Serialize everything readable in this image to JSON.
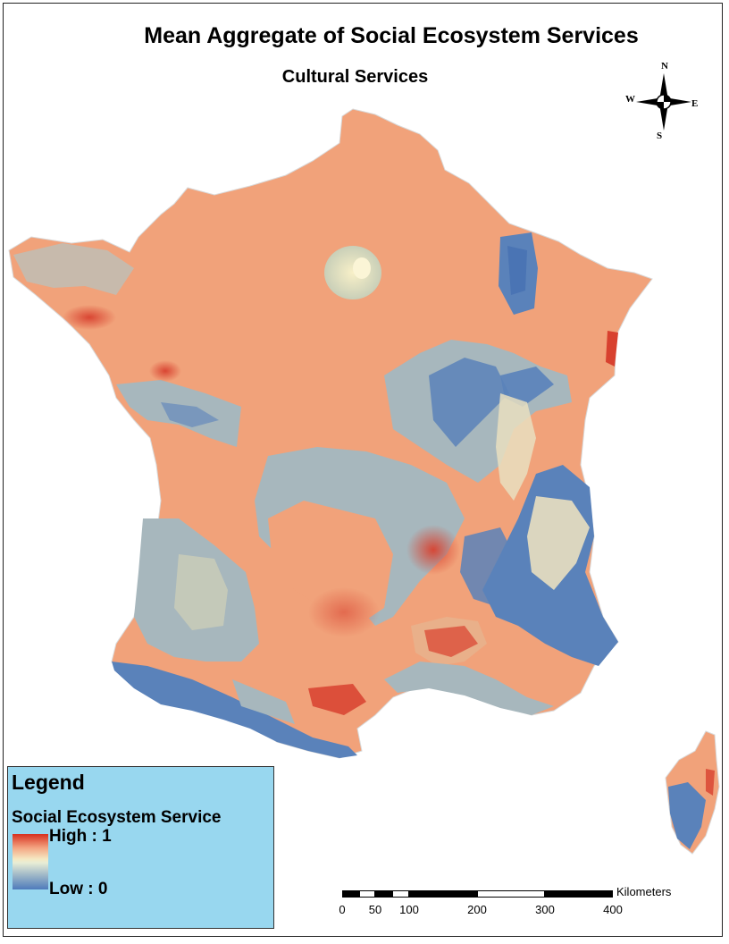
{
  "map": {
    "title": "Mean Aggregate of Social Ecosystem Services",
    "subtitle": "Cultural Services"
  },
  "compass": {
    "n": "N",
    "s": "S",
    "e": "E",
    "w": "W"
  },
  "legend": {
    "title": "Legend",
    "layer": "Social Ecosystem Service",
    "high": "High : 1",
    "low": "Low : 0",
    "colors": {
      "high": "#d7301f",
      "mid": "#f5e8c2",
      "low": "#4f7bbb"
    }
  },
  "scalebar": {
    "unit": "Kilometers",
    "ticks": [
      "0",
      "50",
      "100",
      "200",
      "300",
      "400"
    ]
  },
  "palette": {
    "orange": "#f1a27a",
    "beige": "#e9dfc0",
    "grey_blue": "#a7b7bd",
    "blue": "#5a82ba",
    "red": "#d8412f"
  }
}
